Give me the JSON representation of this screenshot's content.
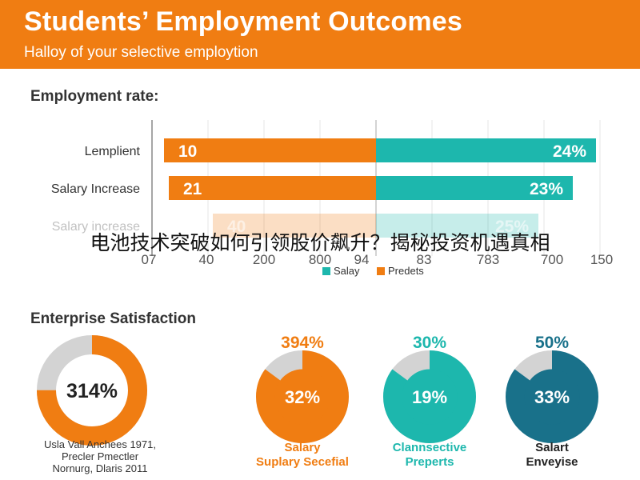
{
  "header": {
    "title": "Students’ Employment Outcomes",
    "subtitle": "Halloy of your selective employtion"
  },
  "overlay_caption": "电池技术突破如何引领股价飙升？揭秘投资机遇真相",
  "footnote": [
    "Usla Vall Anchees 1971,",
    "Precler Pmectler",
    "Nornurg, Dlaris 2011"
  ],
  "colors": {
    "orange": "#f07d12",
    "teal": "#1db7ad",
    "dark_teal": "#19718a",
    "gray": "#d3d3d3",
    "header_bg": "#f07d12"
  },
  "chart_data": [
    {
      "type": "bar",
      "title": "Employment rate:",
      "categories": [
        "Lemplient",
        "Salary Increase",
        "Salary increase"
      ],
      "series": [
        {
          "name": "Predets",
          "color": "#f07d12",
          "labels": [
            "10",
            "21",
            "40"
          ]
        },
        {
          "name": "Salay",
          "color": "#1db7ad",
          "labels": [
            "24%",
            "23%",
            "25%"
          ]
        }
      ],
      "x_tick_labels": [
        "07",
        "40",
        "200",
        "800",
        "94",
        "83",
        "783",
        "700",
        "150"
      ],
      "faded_categories": [
        "Salary increase"
      ],
      "legend": "bottom-center",
      "grid": true
    },
    {
      "type": "pie",
      "title": "Enterprise Satisfaction",
      "charts": [
        {
          "center_label": "314%",
          "value": 75,
          "color": "#f07d12",
          "top_label": "",
          "bottom_lines": []
        },
        {
          "center_label": "32%",
          "value": 85,
          "color": "#f07d12",
          "top_label": "394%",
          "top_color": "#f07d12",
          "bottom_lines": [
            "Salary",
            "Suplary Secefial"
          ],
          "bottom_color": "#f07d12"
        },
        {
          "center_label": "19%",
          "value": 85,
          "color": "#1db7ad",
          "top_label": "30%",
          "top_color": "#1db7ad",
          "bottom_lines": [
            "Clannsective",
            "Preperts"
          ],
          "bottom_color": "#1db7ad"
        },
        {
          "center_label": "33%",
          "value": 85,
          "color": "#19718a",
          "top_label": "50%",
          "top_color": "#19718a",
          "bottom_lines": [
            "Salart",
            "Enveyise"
          ],
          "bottom_color": "#222222"
        }
      ]
    }
  ]
}
